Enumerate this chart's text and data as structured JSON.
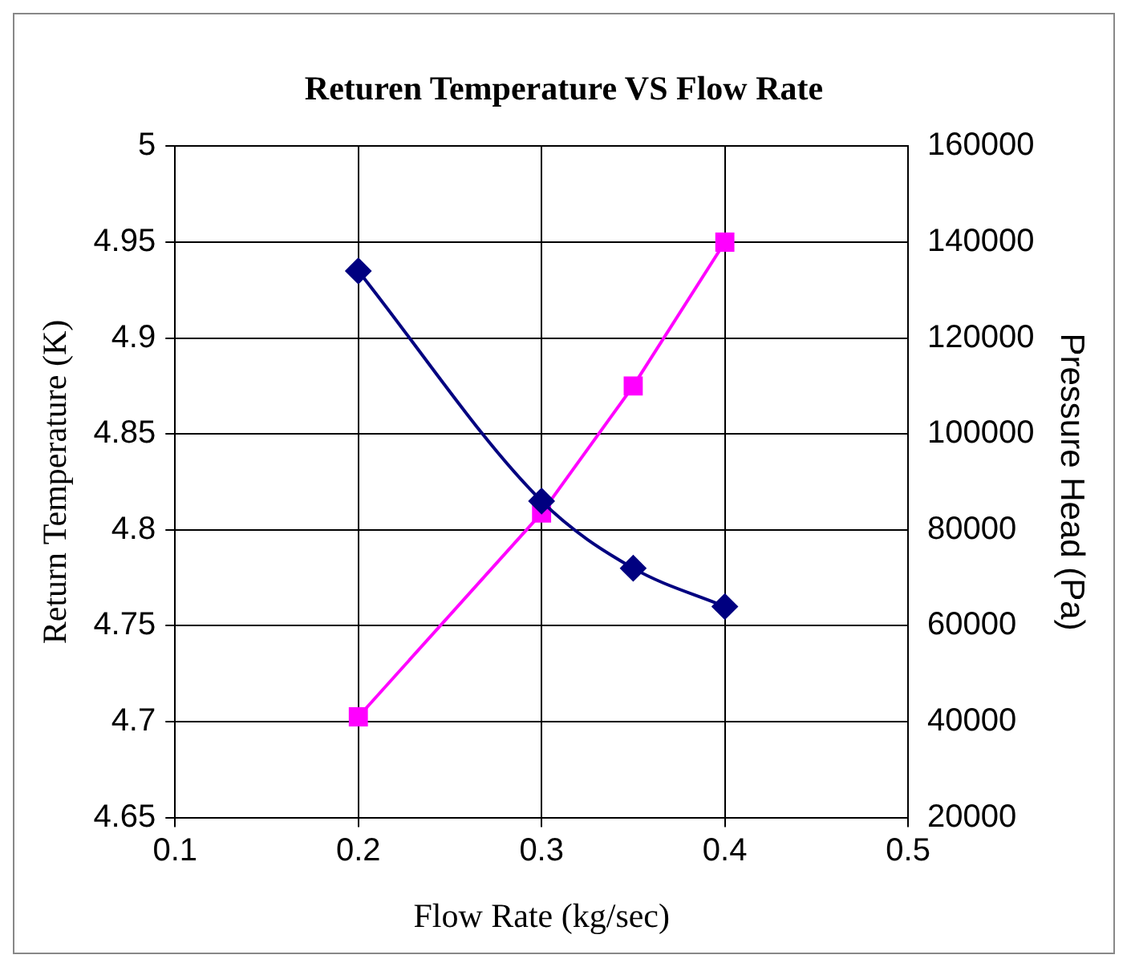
{
  "chart_data": {
    "type": "line",
    "title": "Returen Temperature VS Flow Rate",
    "xlabel": "Flow Rate (kg/sec)",
    "ylabel": "Return Temperature (K)",
    "y2label": "Pressure Head (Pa)",
    "x": [
      0.2,
      0.3,
      0.35,
      0.4
    ],
    "series": [
      {
        "color": "#000080",
        "values": [
          4.935,
          4.815,
          4.78,
          4.76
        ],
        "marker": "diamond"
      },
      {
        "color": "#ff00ff",
        "values": [
          41000,
          83500,
          110000,
          140000
        ],
        "marker": "square",
        "axis": "y2"
      }
    ],
    "xlim": [
      0.1,
      0.5
    ],
    "xticks": [
      0.1,
      0.2,
      0.3,
      0.4,
      0.5
    ],
    "ylim": [
      4.65,
      5
    ],
    "yticks": [
      4.65,
      4.7,
      4.75,
      4.8,
      4.85,
      4.9,
      4.95,
      5
    ],
    "y2lim": [
      20000,
      160000
    ],
    "y2ticks": [
      20000,
      40000,
      60000,
      80000,
      100000,
      120000,
      140000,
      160000
    ],
    "grid": true,
    "legend": false
  }
}
